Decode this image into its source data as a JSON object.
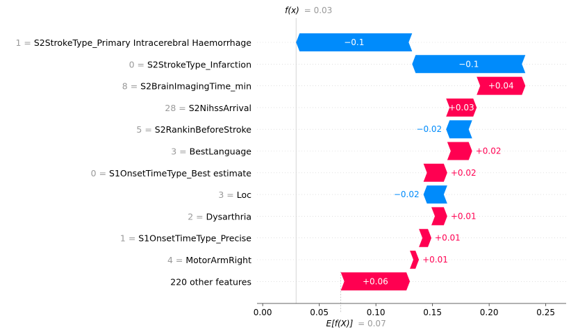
{
  "chart_data": {
    "type": "waterfall",
    "fx_label": "f(x)",
    "fx_value_text": "= 0.03",
    "fx_value": 0.0295,
    "efx_label": "E[f(X)]",
    "efx_value_text": "= 0.07",
    "efx_value": 0.069,
    "xlim": [
      -0.005,
      0.268
    ],
    "xticks": [
      0.0,
      0.05,
      0.1,
      0.15,
      0.2,
      0.25
    ],
    "xtick_labels": [
      "0.00",
      "0.05",
      "0.10",
      "0.15",
      "0.20",
      "0.25"
    ],
    "colors": {
      "positive": "#ff0051",
      "negative": "#008bfb",
      "gray": "#999999"
    },
    "features": [
      {
        "value": "1",
        "name": "S2StrokeType_Primary Intracerebral Haemorrhage",
        "start": 0.132,
        "end": 0.0295,
        "label": "−0.1"
      },
      {
        "value": "0",
        "name": "S2StrokeType_Infarction",
        "start": 0.232,
        "end": 0.132,
        "label": "−0.1"
      },
      {
        "value": "8",
        "name": "S2BrainImagingTime_min",
        "start": 0.189,
        "end": 0.232,
        "label": "+0.04"
      },
      {
        "value": "28",
        "name": "S2NihssArrival",
        "start": 0.162,
        "end": 0.189,
        "label": "+0.03"
      },
      {
        "value": "5",
        "name": "S2RankinBeforeStroke",
        "start": 0.185,
        "end": 0.162,
        "label": "−0.02"
      },
      {
        "value": "3",
        "name": "BestLanguage",
        "start": 0.163,
        "end": 0.185,
        "label": "+0.02"
      },
      {
        "value": "0",
        "name": "S1OnsetTimeType_Best estimate",
        "start": 0.142,
        "end": 0.163,
        "label": "+0.02"
      },
      {
        "value": "3",
        "name": "Loc",
        "start": 0.163,
        "end": 0.142,
        "label": "−0.02"
      },
      {
        "value": "2",
        "name": "Dysarthria",
        "start": 0.149,
        "end": 0.163,
        "label": "+0.01"
      },
      {
        "value": "1",
        "name": "S1OnsetTimeType_Precise",
        "start": 0.138,
        "end": 0.149,
        "label": "+0.01"
      },
      {
        "value": "4",
        "name": "MotorArmRight",
        "start": 0.13,
        "end": 0.138,
        "label": "+0.01"
      },
      {
        "value": "",
        "name": "220 other features",
        "start": 0.069,
        "end": 0.13,
        "label": "+0.06"
      }
    ]
  }
}
